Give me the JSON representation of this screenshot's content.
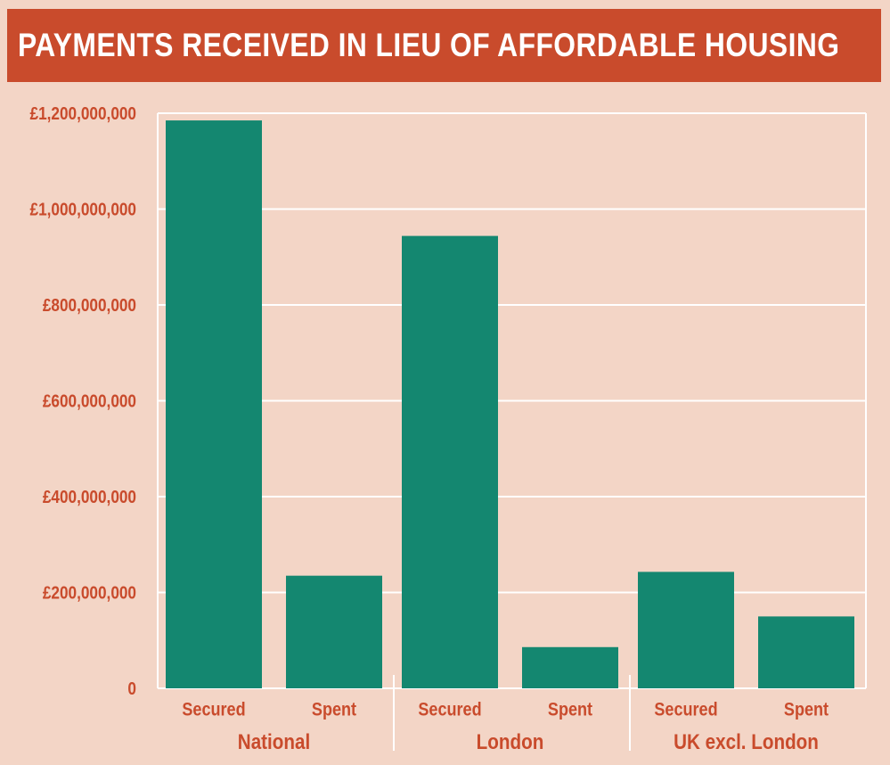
{
  "chart_data": {
    "type": "bar",
    "title": "PAYMENTS RECEIVED IN LIEU OF AFFORDABLE HOUSING",
    "xlabel": "",
    "ylabel": "",
    "ylim": [
      0,
      1200000000
    ],
    "yticks": [
      0,
      200000000,
      400000000,
      600000000,
      800000000,
      1000000000,
      1200000000
    ],
    "ytick_labels": [
      "0",
      "£200,000,000",
      "£400,000,000",
      "£600,000,000",
      "£800,000,000",
      "£1,000,000,000",
      "£1,200,000,000"
    ],
    "groups": [
      {
        "name": "National",
        "categories": [
          "Secured",
          "Spent"
        ],
        "values": [
          1185000000,
          235000000
        ]
      },
      {
        "name": "London",
        "categories": [
          "Secured",
          "Spent"
        ],
        "values": [
          944000000,
          86000000
        ]
      },
      {
        "name": "UK excl. London",
        "categories": [
          "Secured",
          "Spent"
        ],
        "values": [
          243000000,
          150000000
        ]
      }
    ],
    "colors": {
      "bar": "#148770",
      "text": "#c94b2c",
      "background": "#f3d5c6",
      "grid": "#ffffff",
      "title_bg": "#c94b2c",
      "title_text": "#ffffff"
    },
    "grid": true
  }
}
